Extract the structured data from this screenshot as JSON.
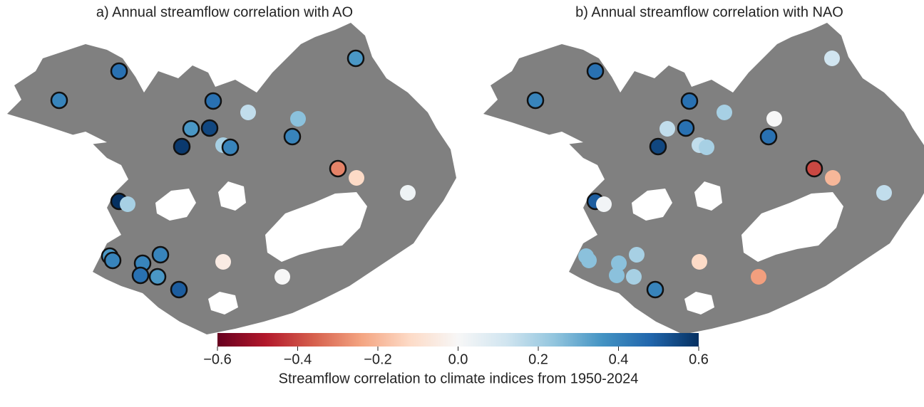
{
  "panels": [
    {
      "title": "a) Annual streamflow correlation with AO",
      "stations": [
        {
          "value": 0.45,
          "significant": true
        },
        {
          "value": 0.4,
          "significant": true
        },
        {
          "value": 0.45,
          "significant": true
        },
        {
          "value": 0.15,
          "significant": false
        },
        {
          "value": 0.25,
          "significant": false
        },
        {
          "value": 0.35,
          "significant": true
        },
        {
          "value": 0.55,
          "significant": true
        },
        {
          "value": 0.4,
          "significant": true
        },
        {
          "value": 0.58,
          "significant": true
        },
        {
          "value": 0.2,
          "significant": false
        },
        {
          "value": 0.4,
          "significant": true
        },
        {
          "value": -0.3,
          "significant": true
        },
        {
          "value": -0.12,
          "significant": false
        },
        {
          "value": 0.03,
          "significant": false
        },
        {
          "value": 0.6,
          "significant": true
        },
        {
          "value": 0.2,
          "significant": false
        },
        {
          "value": 0.35,
          "significant": true
        },
        {
          "value": 0.4,
          "significant": true
        },
        {
          "value": 0.4,
          "significant": true
        },
        {
          "value": 0.4,
          "significant": true
        },
        {
          "value": 0.45,
          "significant": true
        },
        {
          "value": 0.35,
          "significant": true
        },
        {
          "value": -0.05,
          "significant": false
        },
        {
          "value": 0.0,
          "significant": false
        },
        {
          "value": 0.5,
          "significant": true
        },
        {
          "value": 0.35,
          "significant": true
        }
      ]
    },
    {
      "title": "b) Annual streamflow correlation with NAO",
      "stations": [
        {
          "value": 0.45,
          "significant": true
        },
        {
          "value": 0.4,
          "significant": true
        },
        {
          "value": 0.45,
          "significant": true
        },
        {
          "value": 0.2,
          "significant": false
        },
        {
          "value": 0.0,
          "significant": false
        },
        {
          "value": 0.15,
          "significant": false
        },
        {
          "value": 0.45,
          "significant": true
        },
        {
          "value": 0.45,
          "significant": true
        },
        {
          "value": 0.55,
          "significant": true
        },
        {
          "value": 0.15,
          "significant": false
        },
        {
          "value": 0.2,
          "significant": false
        },
        {
          "value": -0.4,
          "significant": true
        },
        {
          "value": -0.2,
          "significant": false
        },
        {
          "value": 0.15,
          "significant": false
        },
        {
          "value": 0.5,
          "significant": true
        },
        {
          "value": 0.02,
          "significant": false
        },
        {
          "value": 0.25,
          "significant": false
        },
        {
          "value": 0.25,
          "significant": false
        },
        {
          "value": 0.2,
          "significant": false
        },
        {
          "value": 0.25,
          "significant": false
        },
        {
          "value": 0.25,
          "significant": false
        },
        {
          "value": 0.2,
          "significant": false
        },
        {
          "value": -0.12,
          "significant": false
        },
        {
          "value": -0.25,
          "significant": false
        },
        {
          "value": 0.4,
          "significant": true
        },
        {
          "value": 0.12,
          "significant": false
        }
      ]
    }
  ],
  "colorbar": {
    "lim": [
      -0.6,
      0.6
    ],
    "ticks": [
      {
        "value": -0.6,
        "label": "−0.6"
      },
      {
        "value": -0.4,
        "label": "−0.4"
      },
      {
        "value": -0.2,
        "label": "−0.2"
      },
      {
        "value": 0.0,
        "label": "0.0"
      },
      0.2,
      0.4,
      0.6
    ],
    "label": "Streamflow correlation to climate indices from 1950-2024"
  }
}
